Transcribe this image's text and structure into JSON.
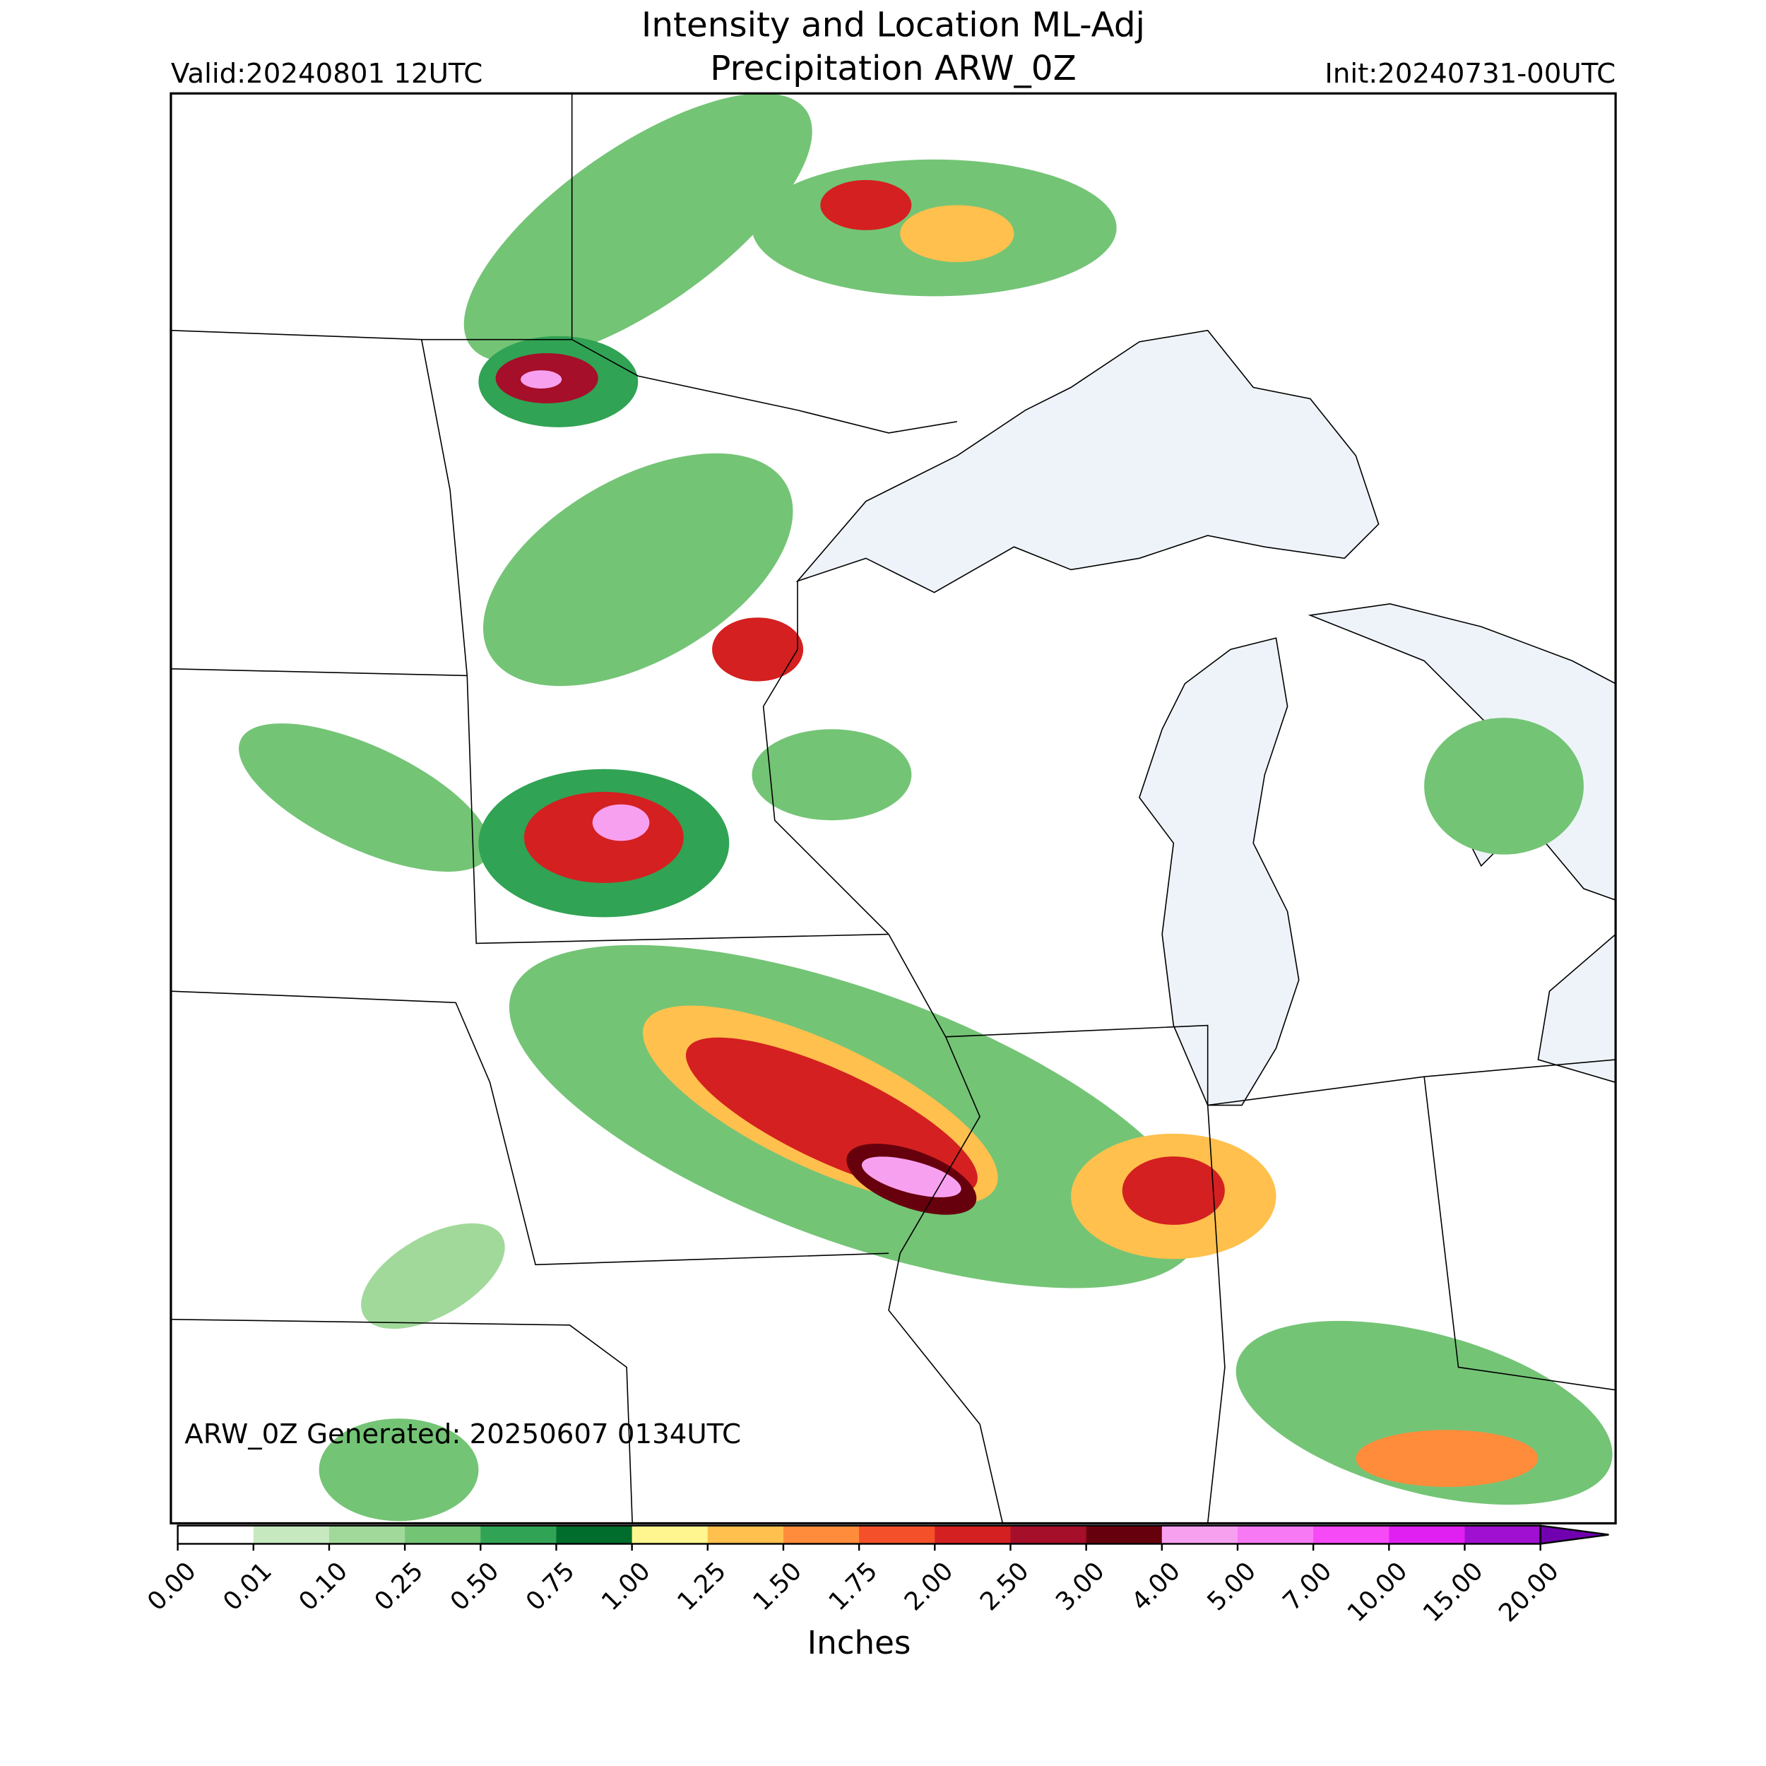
{
  "header": {
    "title_line1": "Intensity and Location ML-Adj",
    "title_line2": "Precipitation ARW_0Z",
    "valid": "Valid:20240801 12UTC",
    "init": "Init:20240731-00UTC"
  },
  "map": {
    "note": "ARW_0Z Generated: 20250607 0134UTC"
  },
  "colorbar": {
    "label": "Inches",
    "ticks": [
      {
        "value": 0,
        "label": "0.00"
      },
      {
        "value": 0.01,
        "label": "0.01"
      },
      {
        "value": 0.1,
        "label": "0.10"
      },
      {
        "value": 0.25,
        "label": "0.25"
      },
      {
        "value": 0.5,
        "label": "0.50"
      },
      {
        "value": 0.75,
        "label": "0.75"
      },
      {
        "value": 1,
        "label": "1.00"
      },
      {
        "value": 1.25,
        "label": "1.25"
      },
      {
        "value": 1.5,
        "label": "1.50"
      },
      {
        "value": 1.75,
        "label": "1.75"
      },
      {
        "value": 2,
        "label": "2.00"
      },
      {
        "value": 2.5,
        "label": "2.50"
      },
      {
        "value": 3,
        "label": "3.00"
      },
      {
        "value": 4,
        "label": "4.00"
      },
      {
        "value": 5,
        "label": "5.00"
      },
      {
        "value": 7,
        "label": "7.00"
      },
      {
        "value": 10,
        "label": "10.00"
      },
      {
        "value": 15,
        "label": "15.00"
      },
      {
        "value": 20,
        "label": "20.00"
      }
    ],
    "colors": [
      "#ffffff",
      "#c7e9c0",
      "#a1d99b",
      "#74c476",
      "#31a354",
      "#006d2c",
      "#fff68f",
      "#ffc04d",
      "#ff8c3a",
      "#f4502a",
      "#d42020",
      "#a50f2a",
      "#67000d",
      "#f8a0f0",
      "#f77af4",
      "#f54af5",
      "#e020f0",
      "#a010d0"
    ],
    "extend_color": "#7000b0"
  }
}
